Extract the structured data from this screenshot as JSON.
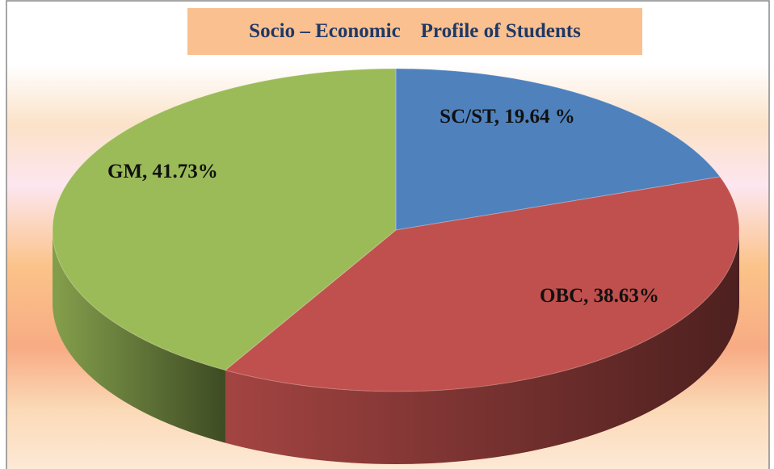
{
  "chart_data": {
    "type": "pie",
    "title": "Socio – Economic    Profile of Students",
    "values": [
      19.64,
      38.63,
      41.73
    ],
    "value_labels": [
      "SC/ST, 19.64 %",
      "OBC, 38.63%",
      "GM, 41.73%"
    ],
    "colors": [
      "#4f81bd",
      "#c0504d",
      "#9bbb59"
    ]
  }
}
